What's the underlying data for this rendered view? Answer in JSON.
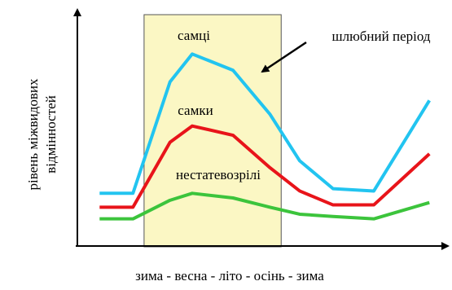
{
  "chart_data": {
    "type": "line",
    "y_label": [
      "рівень міжвидових",
      "відмінностей"
    ],
    "x_label": "зима - весна - літо - осінь - зима",
    "annotation": "шлюбний період",
    "span": [
      18,
      55
    ],
    "xlim": [
      0,
      100
    ],
    "ylim": [
      0,
      100
    ],
    "x": [
      6,
      15,
      25,
      31,
      42,
      52,
      60,
      69,
      80,
      95
    ],
    "series": [
      {
        "name": "самці",
        "color": "#22c4f0",
        "values": [
          22,
          22,
          70,
          82,
          75,
          56,
          36,
          24,
          23,
          62
        ]
      },
      {
        "name": "самки",
        "color": "#e8141a",
        "values": [
          16,
          16,
          44,
          51,
          47,
          33,
          23,
          17,
          17,
          39
        ]
      },
      {
        "name": "нестатевозрілі",
        "color": "#3cc43c",
        "values": [
          11,
          11,
          19,
          22,
          20,
          16,
          13,
          12,
          11,
          18
        ]
      }
    ]
  }
}
